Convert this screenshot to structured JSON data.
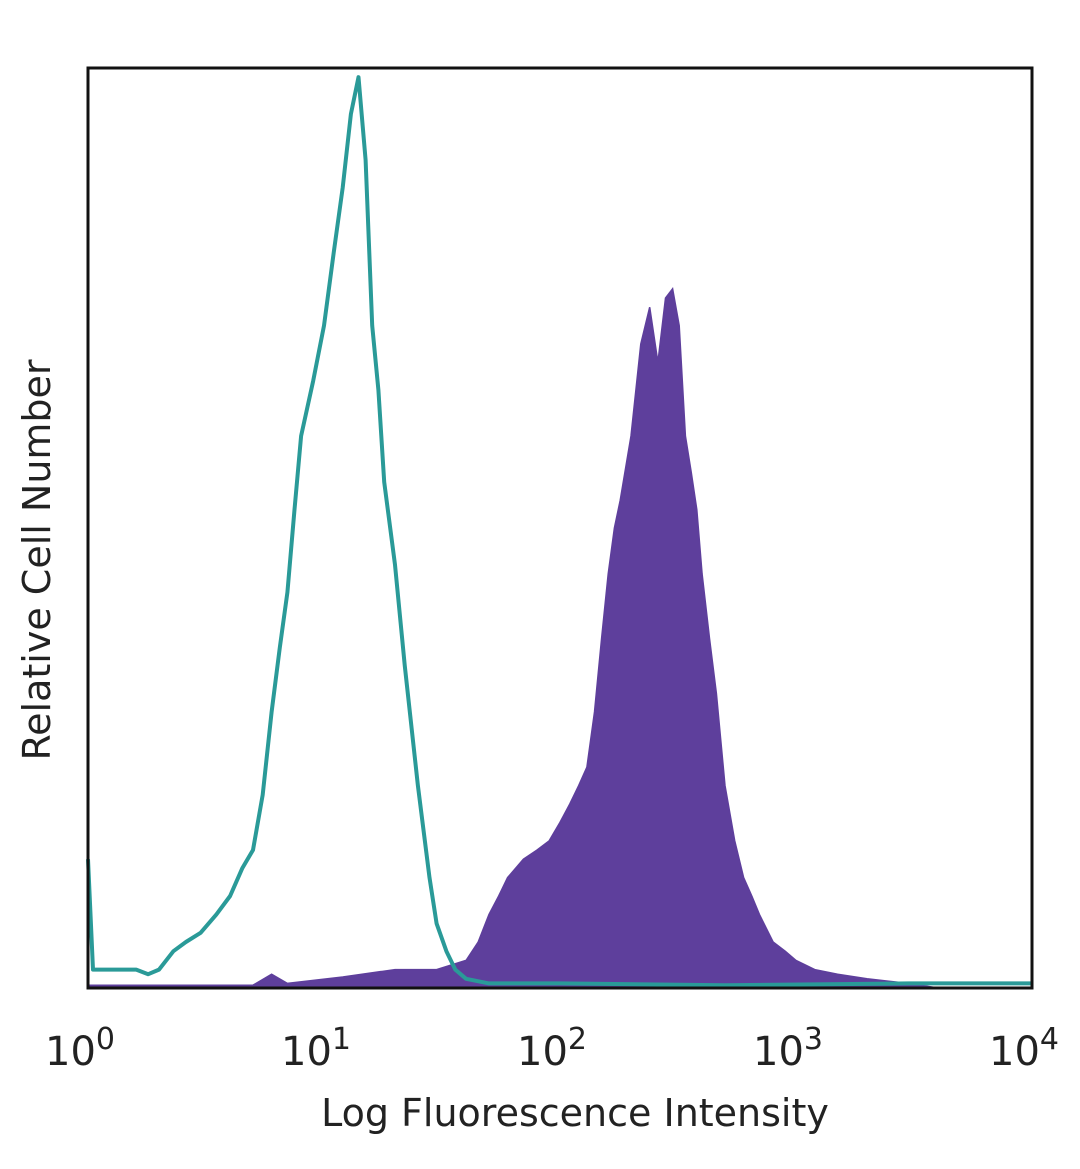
{
  "chart_data": {
    "type": "area",
    "xlabel": "Log Fluorescence Intensity",
    "ylabel": "Relative Cell Number",
    "x_scale": "log",
    "xlim": [
      1,
      10000
    ],
    "ylim": [
      0,
      100
    ],
    "grid": false,
    "x_ticks": [
      {
        "base": "10",
        "exp": "0",
        "value": 1
      },
      {
        "base": "10",
        "exp": "1",
        "value": 10
      },
      {
        "base": "10",
        "exp": "2",
        "value": 100
      },
      {
        "base": "10",
        "exp": "3",
        "value": 1000
      },
      {
        "base": "10",
        "exp": "4",
        "value": 10000
      }
    ],
    "series": [
      {
        "style": "outline",
        "color": "#2a9a98",
        "x": [
          1.0,
          1.05,
          1.2,
          1.4,
          1.6,
          1.8,
          2.0,
          2.3,
          2.6,
          3.0,
          3.5,
          4.0,
          4.5,
          5.0,
          5.5,
          6.0,
          6.5,
          7.0,
          7.5,
          8.0,
          9.0,
          10.0,
          11.0,
          12.0,
          13.0,
          14.0,
          15.0,
          16.0,
          17.0,
          18.0,
          20.0,
          22.0,
          25.0,
          28.0,
          30.0,
          33.0,
          36.0,
          40.0,
          50.0,
          70.0,
          100.0,
          500.0,
          3000.0,
          10000.0
        ],
        "values": [
          14,
          2,
          2,
          2,
          2,
          1.5,
          2,
          4,
          5,
          6,
          8,
          10,
          13,
          15,
          21,
          30,
          37,
          43,
          52,
          60,
          66,
          72,
          80,
          87,
          95,
          99,
          90,
          72,
          65,
          55,
          46,
          35,
          22,
          12,
          7,
          4,
          2,
          1,
          0.5,
          0.5,
          0.5,
          0.3,
          0.5,
          0.5
        ]
      },
      {
        "style": "filled",
        "color": "#5e3f9c",
        "x": [
          1.0,
          5.0,
          6.0,
          7.0,
          12.0,
          20.0,
          30.0,
          40.0,
          45.0,
          50.0,
          55.0,
          60.0,
          70.0,
          80.0,
          90.0,
          100.0,
          110.0,
          120.0,
          130.0,
          140.0,
          150.0,
          160.0,
          170.0,
          180.0,
          200.0,
          220.0,
          240.0,
          260.0,
          280.0,
          300.0,
          320.0,
          340.0,
          360.0,
          380.0,
          400.0,
          430.0,
          460.0,
          500.0,
          550.0,
          600.0,
          650.0,
          700.0,
          800.0,
          900.0,
          1000.0,
          1200.0,
          1500.0,
          2000.0,
          3000.0,
          4000.0
        ],
        "values": [
          0.3,
          0.3,
          1.5,
          0.5,
          1.2,
          2,
          2,
          3,
          5,
          8,
          10,
          12,
          14,
          15,
          16,
          18,
          20,
          22,
          24,
          30,
          38,
          45,
          50,
          53,
          60,
          70,
          74,
          68,
          75,
          76,
          72,
          60,
          56,
          52,
          45,
          38,
          32,
          22,
          16,
          12,
          10,
          8,
          5,
          4,
          3,
          2,
          1.5,
          1,
          0.5,
          0
        ]
      }
    ]
  }
}
